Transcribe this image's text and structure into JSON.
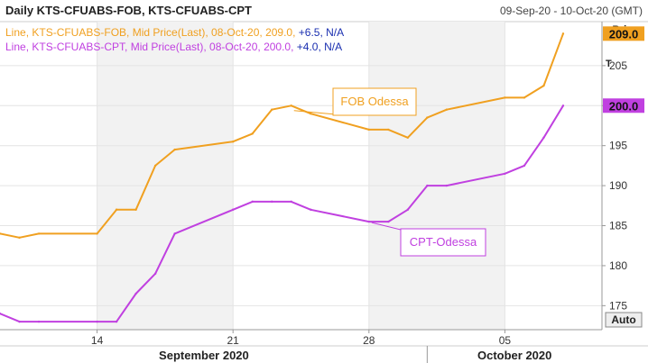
{
  "header": {
    "title": "Daily KTS-CFUABS-FOB, KTS-CFUABS-CPT",
    "date_range": "09-Sep-20 - 10-Oct-20 (GMT)"
  },
  "legend": [
    {
      "prefix": "Line, KTS-CFUABS-FOB, Mid Price(Last), 08-Oct-20, 209.0, ",
      "change": "+6.5, N/A",
      "color": "#f0a020"
    },
    {
      "prefix": "Line, KTS-CFUABS-CPT, Mid Price(Last), 08-Oct-20, 200.0, ",
      "change": "+4.0, N/A",
      "color": "#c040e0"
    }
  ],
  "axis": {
    "price_label": "Price",
    "t_label": "T",
    "auto_button": "Auto"
  },
  "colors": {
    "fob": "#f0a020",
    "cpt": "#c040e0",
    "change_text": "#1a2fb0",
    "weekend_band": "#f2f2f2",
    "grid": "#e4e4e4"
  },
  "chart_data": {
    "type": "line",
    "x": [
      "2020-09-09",
      "2020-09-10",
      "2020-09-11",
      "2020-09-14",
      "2020-09-15",
      "2020-09-16",
      "2020-09-17",
      "2020-09-18",
      "2020-09-21",
      "2020-09-22",
      "2020-09-23",
      "2020-09-24",
      "2020-09-25",
      "2020-09-28",
      "2020-09-29",
      "2020-09-30",
      "2020-10-01",
      "2020-10-02",
      "2020-10-05",
      "2020-10-06",
      "2020-10-07",
      "2020-10-08"
    ],
    "series": [
      {
        "name": "KTS-CFUABS-FOB",
        "color": "#f0a020",
        "values": [
          184.0,
          183.5,
          184.0,
          184.0,
          187.0,
          187.0,
          192.5,
          194.5,
          195.5,
          196.5,
          199.5,
          200.0,
          199.0,
          197.0,
          197.0,
          196.0,
          198.5,
          199.5,
          201.0,
          201.0,
          202.5,
          209.0
        ]
      },
      {
        "name": "KTS-CFUABS-CPT",
        "color": "#c040e0",
        "values": [
          174.0,
          173.0,
          173.0,
          173.0,
          173.0,
          176.5,
          179.0,
          184.0,
          187.0,
          188.0,
          188.0,
          188.0,
          187.0,
          185.5,
          185.5,
          187.0,
          190.0,
          190.0,
          191.5,
          192.5,
          196.0,
          200.0
        ]
      }
    ],
    "y_ticks": [
      175,
      180,
      185,
      190,
      195,
      200,
      205
    ],
    "ylim": [
      172,
      210.5
    ],
    "x_ticks": [
      {
        "date": "2020-09-14",
        "label": "14"
      },
      {
        "date": "2020-09-21",
        "label": "21"
      },
      {
        "date": "2020-09-28",
        "label": "28"
      },
      {
        "date": "2020-10-05",
        "label": "05"
      }
    ],
    "months": [
      {
        "label": "September 2020",
        "from": "2020-09-09",
        "to": "2020-09-30"
      },
      {
        "label": "October 2020",
        "from": "2020-10-01",
        "to": "2020-10-10"
      }
    ],
    "last_value_labels": [
      {
        "series": "KTS-CFUABS-FOB",
        "value": "209.0"
      },
      {
        "series": "KTS-CFUABS-CPT",
        "value": "200.0"
      }
    ],
    "annotations": [
      {
        "text": "FOB Odessa",
        "series": "KTS-CFUABS-FOB",
        "date": "2020-09-24",
        "value": 199.5
      },
      {
        "text": "CPT-Odessa",
        "series": "KTS-CFUABS-CPT",
        "date": "2020-09-28",
        "value": 185.5
      }
    ],
    "grid": true
  }
}
